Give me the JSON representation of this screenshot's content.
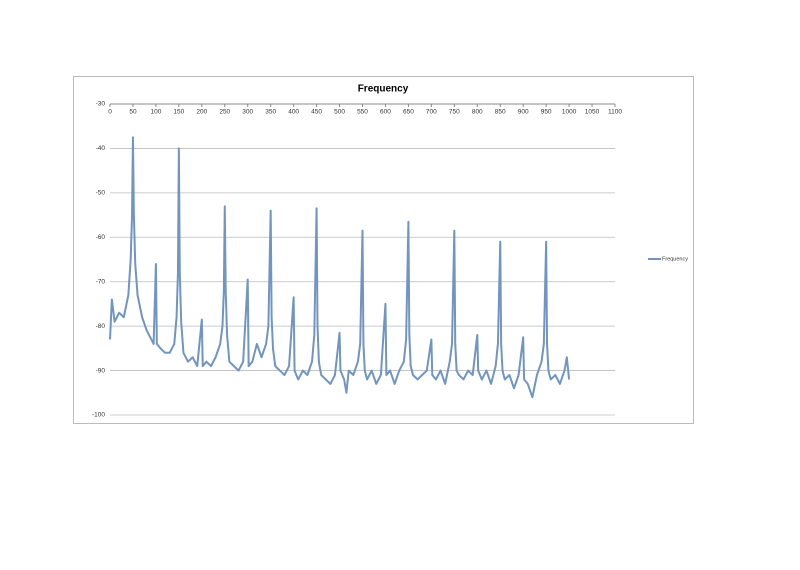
{
  "chart_data": {
    "type": "line",
    "title": "Frequency",
    "x": [
      0,
      4,
      10,
      20,
      30,
      40,
      45,
      48,
      50,
      52,
      55,
      60,
      70,
      80,
      90,
      95,
      100,
      102,
      110,
      120,
      130,
      140,
      145,
      148,
      150,
      152,
      155,
      160,
      170,
      180,
      190,
      200,
      202,
      210,
      220,
      230,
      240,
      245,
      248,
      250,
      252,
      255,
      260,
      270,
      280,
      290,
      300,
      302,
      310,
      320,
      330,
      340,
      345,
      350,
      352,
      355,
      360,
      370,
      380,
      390,
      400,
      402,
      410,
      420,
      430,
      440,
      445,
      450,
      452,
      455,
      460,
      470,
      480,
      490,
      500,
      502,
      510,
      515,
      520,
      530,
      540,
      545,
      550,
      552,
      555,
      560,
      570,
      580,
      590,
      600,
      602,
      610,
      620,
      630,
      640,
      645,
      650,
      652,
      655,
      660,
      670,
      680,
      690,
      700,
      702,
      710,
      720,
      730,
      740,
      745,
      750,
      752,
      755,
      760,
      770,
      780,
      790,
      800,
      802,
      810,
      820,
      830,
      840,
      845,
      850,
      852,
      855,
      860,
      870,
      880,
      890,
      900,
      902,
      910,
      920,
      930,
      940,
      945,
      950,
      952,
      955,
      960,
      970,
      980,
      990,
      995,
      1000
    ],
    "series": [
      {
        "name": "Frequency",
        "color": "#7094c4",
        "values": [
          -83,
          -74,
          -79,
          -77,
          -78,
          -73,
          -65,
          -55,
          -37.5,
          -55,
          -66,
          -73,
          -78,
          -81,
          -83,
          -84,
          -66,
          -84,
          -85,
          -86,
          -86,
          -84,
          -78,
          -68,
          -40,
          -68,
          -79,
          -86,
          -88,
          -87,
          -89,
          -78.5,
          -89,
          -88,
          -89,
          -87,
          -84,
          -80,
          -72,
          -53,
          -72,
          -82,
          -88,
          -89,
          -90,
          -88,
          -69.5,
          -89,
          -88,
          -84,
          -87,
          -84,
          -80,
          -54,
          -78,
          -85,
          -89,
          -90,
          -91,
          -89,
          -73.5,
          -90,
          -92,
          -90,
          -91,
          -88,
          -82,
          -53.5,
          -80,
          -88,
          -91,
          -92,
          -93,
          -91,
          -81.5,
          -90,
          -92,
          -95,
          -90,
          -91,
          -88,
          -84,
          -58.5,
          -84,
          -90,
          -92,
          -90,
          -93,
          -91,
          -75,
          -91,
          -90,
          -93,
          -90,
          -88,
          -83,
          -56.5,
          -82,
          -89,
          -91,
          -92,
          -91,
          -90,
          -83,
          -91,
          -92,
          -90,
          -93,
          -88,
          -84,
          -58.5,
          -84,
          -90,
          -91,
          -92,
          -90,
          -91,
          -82,
          -90,
          -92,
          -90,
          -93,
          -89,
          -84,
          -61,
          -84,
          -90,
          -92,
          -91,
          -94,
          -91,
          -82.5,
          -92,
          -93,
          -96,
          -91,
          -88,
          -84,
          -61,
          -84,
          -90,
          -92,
          -91,
          -93,
          -90,
          -87,
          -92
        ]
      }
    ],
    "xlim": [
      0,
      1100
    ],
    "xticks": [
      0,
      50,
      100,
      150,
      200,
      250,
      300,
      350,
      400,
      450,
      500,
      550,
      600,
      650,
      700,
      750,
      800,
      850,
      900,
      950,
      1000,
      1050,
      1100
    ],
    "ylim": [
      -100,
      -30
    ],
    "yticks": [
      -30,
      -40,
      -50,
      -60,
      -70,
      -80,
      -90,
      -100
    ],
    "grid": true,
    "legend": "right"
  }
}
